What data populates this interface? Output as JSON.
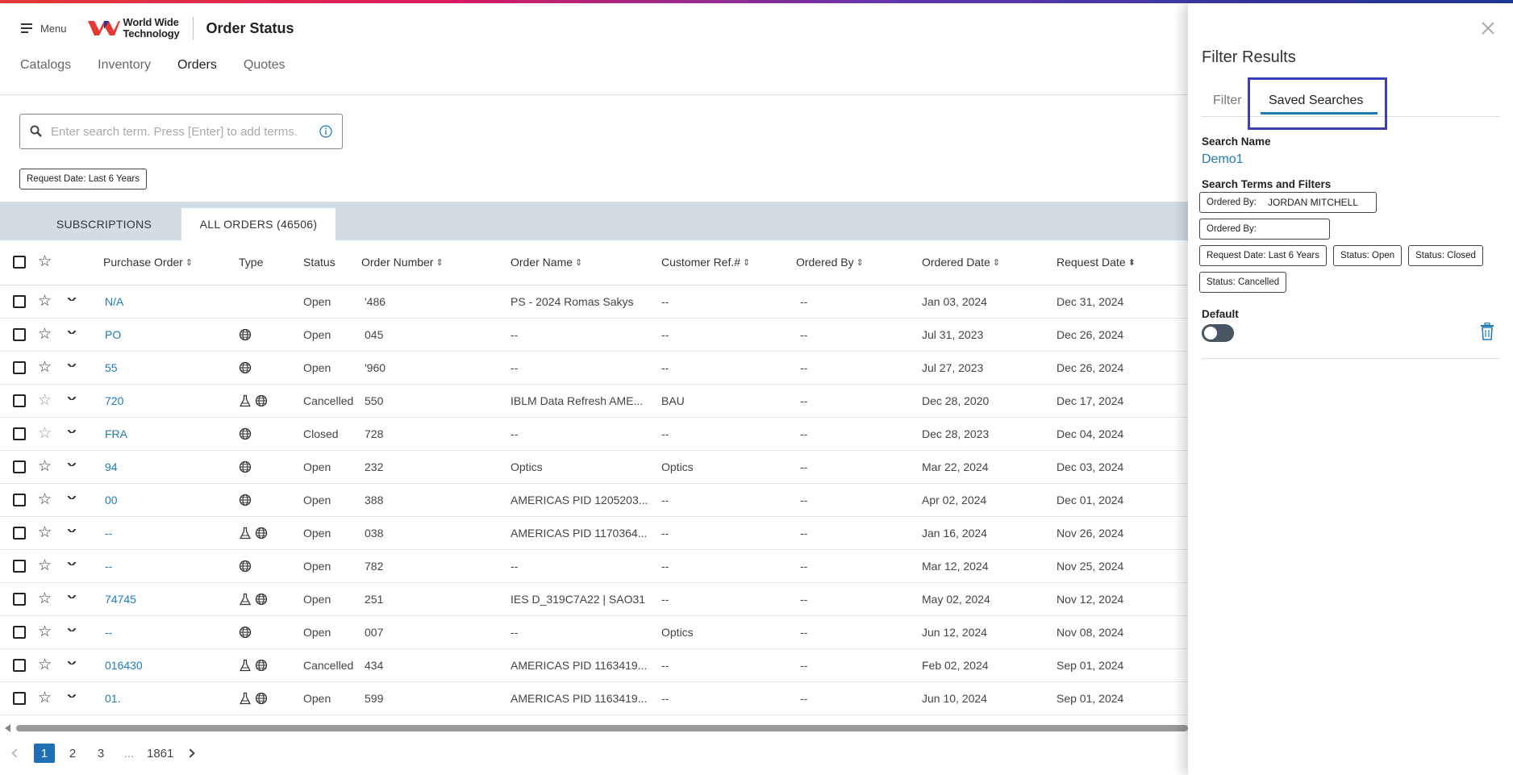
{
  "header": {
    "menu_label": "Menu",
    "logo_line1": "World Wide",
    "logo_line2": "Technology",
    "page_title": "Order Status"
  },
  "nav": {
    "items": [
      "Catalogs",
      "Inventory",
      "Orders",
      "Quotes"
    ],
    "active": "Orders"
  },
  "search": {
    "placeholder": "Enter search term. Press [Enter] to add terms."
  },
  "active_filter_chip": "Request Date: Last 6 Years",
  "tabs": {
    "subscriptions": "SUBSCRIPTIONS",
    "all_orders": "ALL ORDERS (46506)"
  },
  "table": {
    "columns": [
      "Purchase Order",
      "Type",
      "Status",
      "Order Number",
      "Order Name",
      "Customer Ref.#",
      "Ordered By",
      "Ordered Date",
      "Request Date"
    ],
    "rows": [
      {
        "po": "N/A",
        "type": [],
        "status": "Open",
        "order_number": "'486",
        "order_name": "PS - 2024 Romas Sakys",
        "customer_ref": "--",
        "ordered_by": "--",
        "ordered_date": "Jan 03, 2024",
        "request_date": "Dec 31, 2024",
        "star_faint": false
      },
      {
        "po": "PO",
        "type": [
          "globe"
        ],
        "status": "Open",
        "order_number": "045",
        "order_name": "--",
        "customer_ref": "--",
        "ordered_by": "--",
        "ordered_date": "Jul 31, 2023",
        "request_date": "Dec 26, 2024",
        "star_faint": false
      },
      {
        "po": "55",
        "type": [
          "globe"
        ],
        "status": "Open",
        "order_number": "'960",
        "order_name": "--",
        "customer_ref": "--",
        "ordered_by": "--",
        "ordered_date": "Jul 27, 2023",
        "request_date": "Dec 26, 2024",
        "star_faint": false
      },
      {
        "po": "720",
        "type": [
          "flask",
          "globe"
        ],
        "status": "Cancelled",
        "order_number": "550",
        "order_name": "IBLM Data Refresh AME...",
        "customer_ref": "BAU",
        "ordered_by": "--",
        "ordered_date": "Dec 28, 2020",
        "request_date": "Dec 17, 2024",
        "star_faint": true
      },
      {
        "po": "FRA",
        "type": [
          "globe"
        ],
        "status": "Closed",
        "order_number": "728",
        "order_name": "--",
        "customer_ref": "--",
        "ordered_by": "--",
        "ordered_date": "Dec 28, 2023",
        "request_date": "Dec 04, 2024",
        "star_faint": true
      },
      {
        "po": "94",
        "type": [
          "globe"
        ],
        "status": "Open",
        "order_number": "232",
        "order_name": "Optics",
        "customer_ref": "Optics",
        "ordered_by": "--",
        "ordered_date": "Mar 22, 2024",
        "request_date": "Dec 03, 2024",
        "star_faint": false
      },
      {
        "po": "00",
        "type": [
          "globe"
        ],
        "status": "Open",
        "order_number": "388",
        "order_name": "AMERICAS PID 1205203...",
        "customer_ref": "--",
        "ordered_by": "--",
        "ordered_date": "Apr 02, 2024",
        "request_date": "Dec 01, 2024",
        "star_faint": false
      },
      {
        "po": "--",
        "type": [
          "flask",
          "globe"
        ],
        "status": "Open",
        "order_number": "038",
        "order_name": "AMERICAS PID 1170364...",
        "customer_ref": "--",
        "ordered_by": "--",
        "ordered_date": "Jan 16, 2024",
        "request_date": "Nov 26, 2024",
        "star_faint": false
      },
      {
        "po": "--",
        "type": [
          "globe"
        ],
        "status": "Open",
        "order_number": "782",
        "order_name": "--",
        "customer_ref": "--",
        "ordered_by": "--",
        "ordered_date": "Mar 12, 2024",
        "request_date": "Nov 25, 2024",
        "star_faint": false
      },
      {
        "po": "74745",
        "type": [
          "flask",
          "globe"
        ],
        "status": "Open",
        "order_number": "251",
        "order_name": "IES D_319C7A22 | SAO31",
        "customer_ref": "--",
        "ordered_by": "--",
        "ordered_date": "May 02, 2024",
        "request_date": "Nov 12, 2024",
        "star_faint": false
      },
      {
        "po": "--",
        "type": [
          "globe"
        ],
        "status": "Open",
        "order_number": "007",
        "order_name": "--",
        "customer_ref": "Optics",
        "ordered_by": "--",
        "ordered_date": "Jun 12, 2024",
        "request_date": "Nov 08, 2024",
        "star_faint": false
      },
      {
        "po": "016430",
        "type": [
          "flask",
          "globe"
        ],
        "status": "Cancelled",
        "order_number": "434",
        "order_name": "AMERICAS PID 1163419...",
        "customer_ref": "--",
        "ordered_by": "--",
        "ordered_date": "Feb 02, 2024",
        "request_date": "Sep 01, 2024",
        "star_faint": false
      },
      {
        "po": "01.",
        "type": [
          "flask",
          "globe"
        ],
        "status": "Open",
        "order_number": "599",
        "order_name": "AMERICAS PID 1163419...",
        "customer_ref": "--",
        "ordered_by": "--",
        "ordered_date": "Jun 10, 2024",
        "request_date": "Sep 01, 2024",
        "star_faint": false
      }
    ]
  },
  "pagination": {
    "pages": [
      "1",
      "2",
      "3",
      "...",
      "1861"
    ],
    "current": "1"
  },
  "panel": {
    "title": "Filter Results",
    "tab_filter": "Filter",
    "tab_saved": "Saved Searches",
    "search_name_label": "Search Name",
    "search_name_value": "Demo1",
    "terms_label": "Search Terms and Filters",
    "chip_rows": [
      [
        {
          "key": "Ordered By:",
          "value": "JORDAN MITCHELL"
        }
      ],
      [
        {
          "key": "Ordered By:",
          "value": ""
        }
      ],
      [
        {
          "key": "Request Date: Last 6 Years",
          "value": ""
        },
        {
          "key": "Status: Open",
          "value": ""
        },
        {
          "key": "Status: Closed",
          "value": ""
        }
      ],
      [
        {
          "key": "Status: Cancelled",
          "value": ""
        }
      ]
    ],
    "default_label": "Default",
    "default_on": false
  },
  "colors": {
    "link": "#1f7ab8",
    "highlight_box": "#3b3fb8",
    "tabs_bar": "#d3dde6",
    "pager_current": "#1f6fb5"
  }
}
